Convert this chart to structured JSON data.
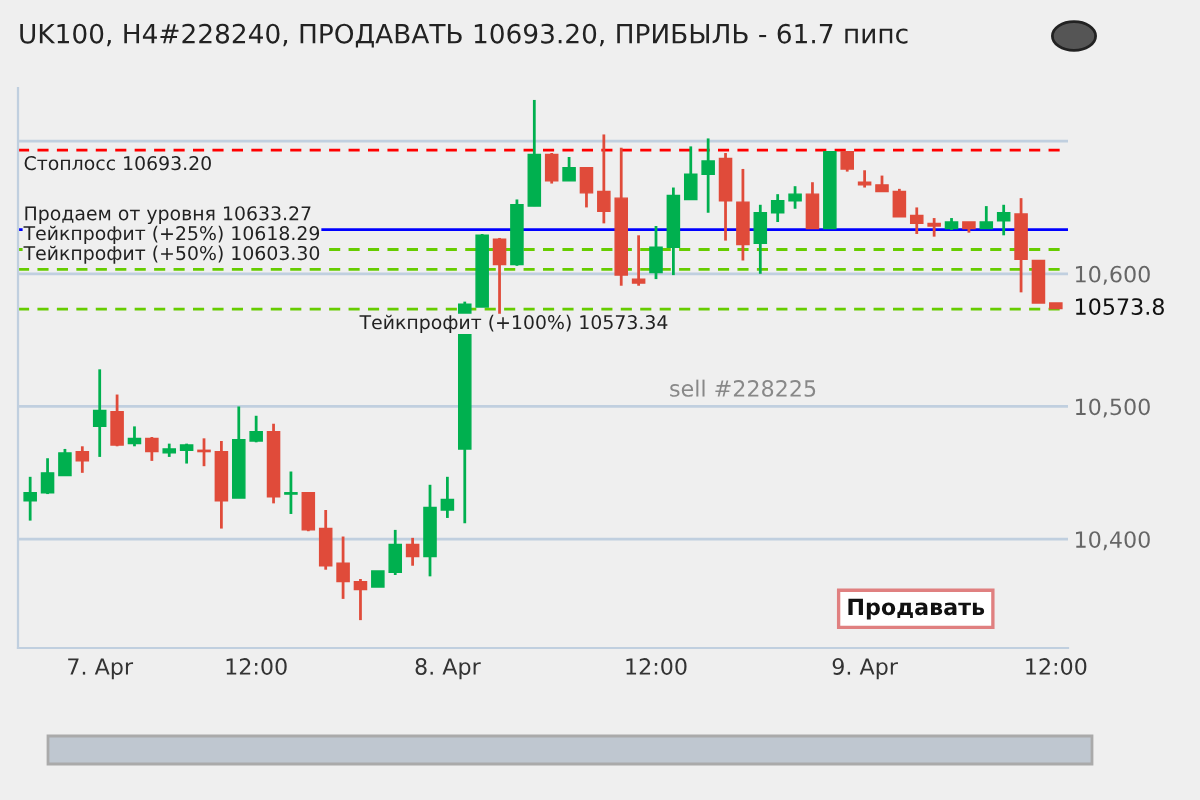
{
  "chart_data": {
    "type": "candlestick",
    "title": "UK100, H4#228240, ПРОДАВАТЬ 10693.20, ПРИБЫЛЬ - 61.7 пипс",
    "categories": [
      null,
      null,
      null,
      null,
      "7. Apr",
      null,
      null,
      null,
      null,
      null,
      null,
      null,
      null,
      "12:00",
      null,
      null,
      null,
      null,
      null,
      null,
      null,
      null,
      null,
      null,
      "8. Apr",
      null,
      null,
      null,
      null,
      null,
      null,
      null,
      null,
      null,
      null,
      null,
      "12:00",
      null,
      null,
      null,
      null,
      null,
      null,
      null,
      null,
      null,
      null,
      null,
      "9. Apr",
      null,
      null,
      null,
      null,
      null,
      null,
      null,
      null,
      null,
      null,
      "12:00"
    ],
    "ohlc": [
      [
        10429,
        10447,
        10414,
        10435
      ],
      [
        10435,
        10461,
        10434,
        10450
      ],
      [
        10448,
        10468,
        10448,
        10465
      ],
      [
        10466,
        10470,
        10450,
        10459
      ],
      [
        10485,
        10528,
        10462,
        10497
      ],
      [
        10496,
        10509,
        10470,
        10471
      ],
      [
        10472,
        10485,
        10470,
        10476
      ],
      [
        10476,
        10477,
        10459,
        10466
      ],
      [
        10465,
        10472,
        10462,
        10468
      ],
      [
        10467,
        10472,
        10457,
        10471
      ],
      [
        10467,
        10476,
        10455,
        10466
      ],
      [
        10466,
        10474,
        10408,
        10429
      ],
      [
        10431,
        10500,
        10431,
        10475
      ],
      [
        10474,
        10493,
        10473,
        10481
      ],
      [
        10481,
        10487,
        10427,
        10432
      ],
      [
        10434,
        10451,
        10419,
        10435
      ],
      [
        10435,
        10435,
        10406,
        10407
      ],
      [
        10408,
        10422,
        10377,
        10380
      ],
      [
        10382,
        10402,
        10355,
        10368
      ],
      [
        10368,
        10370,
        10339,
        10362
      ],
      [
        10364,
        10376,
        10364,
        10376
      ],
      [
        10375,
        10407,
        10373,
        10396
      ],
      [
        10396,
        10401,
        10380,
        10387
      ],
      [
        10387,
        10441,
        10372,
        10424
      ],
      [
        10422,
        10447,
        10416,
        10430
      ],
      [
        10468,
        10579,
        10412,
        10577
      ],
      [
        10575,
        10630,
        10575,
        10629
      ],
      [
        10626,
        10627,
        10567,
        10607
      ],
      [
        10607,
        10656,
        10606,
        10652
      ],
      [
        10651,
        10731,
        10651,
        10690
      ],
      [
        10690,
        10691,
        10668,
        10670
      ],
      [
        10670,
        10688,
        10670,
        10680
      ],
      [
        10680,
        10680,
        10650,
        10661
      ],
      [
        10662,
        10705,
        10638,
        10647
      ],
      [
        10657,
        10695,
        10591,
        10599
      ],
      [
        10596,
        10629,
        10591,
        10593
      ],
      [
        10601,
        10636,
        10596,
        10620
      ],
      [
        10620,
        10665,
        10599,
        10659
      ],
      [
        10656,
        10696,
        10656,
        10675
      ],
      [
        10675,
        10702,
        10646,
        10685
      ],
      [
        10687,
        10691,
        10625,
        10655
      ],
      [
        10654,
        10679,
        10610,
        10622
      ],
      [
        10623,
        10652,
        10600,
        10646
      ],
      [
        10646,
        10660,
        10639,
        10655
      ],
      [
        10655,
        10666,
        10649,
        10660
      ],
      [
        10660,
        10669,
        10634,
        10634
      ],
      [
        10634,
        10692,
        10634,
        10692
      ],
      [
        10692,
        10692,
        10677,
        10679
      ],
      [
        10669,
        10678,
        10665,
        10667
      ],
      [
        10667,
        10674,
        10662,
        10662
      ],
      [
        10662,
        10664,
        10643,
        10643
      ],
      [
        10644,
        10650,
        10630,
        10638
      ],
      [
        10638,
        10642,
        10628,
        10636
      ],
      [
        10634,
        10642,
        10633,
        10639
      ],
      [
        10639,
        10639,
        10631,
        10634
      ],
      [
        10634,
        10651,
        10634,
        10639
      ],
      [
        10640,
        10652,
        10629,
        10646
      ],
      [
        10645,
        10657,
        10586,
        10611
      ],
      [
        10610,
        10610,
        10578,
        10578
      ],
      [
        10578,
        10578,
        10573.8,
        10573.8
      ]
    ],
    "ylim": [
      10318,
      10740
    ],
    "yticks": [
      {
        "value": 10400,
        "label": "10,400"
      },
      {
        "value": 10500,
        "label": "10,500"
      },
      {
        "value": 10600,
        "label": "10,600"
      },
      {
        "value": 10700,
        "label": null
      }
    ],
    "grid": "y",
    "ref_lines": [
      {
        "axis": "y",
        "value": 10693.2,
        "label": "Стоплосс 10693.20",
        "color": "#ff0000",
        "line_style": "dashed"
      },
      {
        "axis": "y",
        "value": 10633.27,
        "label": "Продаем от уровня 10633.27",
        "color": "#0000ff",
        "line_style": "solid"
      },
      {
        "axis": "y",
        "value": 10618.29,
        "label": "Тейкпрофит (+25%) 10618.29",
        "color": "#66cc00",
        "line_style": "dashed"
      },
      {
        "axis": "y",
        "value": 10603.3,
        "label": "Тейкпрофит (+50%) 10603.30",
        "color": "#66cc00",
        "line_style": "dashed"
      },
      {
        "axis": "y",
        "value": 10573.34,
        "label": "Тейкпрофит (+100%) 10573.34",
        "color": "#66cc00",
        "line_style": "dashed"
      }
    ],
    "annotations": [
      "10573.8",
      "sell #228225",
      "Продавать"
    ]
  }
}
